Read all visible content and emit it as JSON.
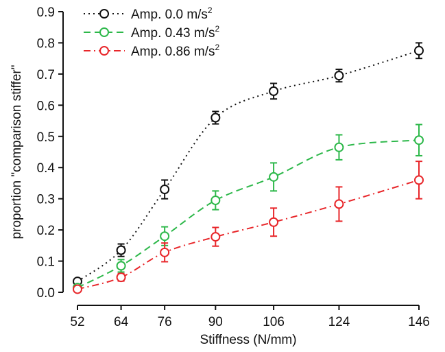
{
  "chart_data": {
    "type": "line",
    "xlabel": "Stiffness (N/mm)",
    "ylabel": "proportion \"comparison stiffer\"",
    "x": [
      52,
      64,
      76,
      90,
      106,
      124,
      146
    ],
    "x_tick_labels": [
      "52",
      "64",
      "76",
      "90",
      "106",
      "124",
      "146"
    ],
    "y_tick_labels": [
      "0.0",
      "0.1",
      "0.2",
      "0.3",
      "0.4",
      "0.5",
      "0.6",
      "0.7",
      "0.8",
      "0.9"
    ],
    "ylim": [
      0,
      0.9
    ],
    "grid": false,
    "legend_position": "top-left",
    "series": [
      {
        "name": "Amp. 0.0 m/s",
        "name_superscript": "2",
        "color": "#111111",
        "line_style": "dotted",
        "marker": "open-circle",
        "values": [
          0.035,
          0.135,
          0.33,
          0.56,
          0.645,
          0.695,
          0.775
        ],
        "errors": [
          0.008,
          0.02,
          0.03,
          0.02,
          0.025,
          0.02,
          0.025
        ]
      },
      {
        "name": "Amp. 0.43 m/s",
        "name_superscript": "2",
        "color": "#2db84a",
        "line_style": "dashed",
        "marker": "open-circle",
        "values": [
          0.015,
          0.085,
          0.18,
          0.295,
          0.37,
          0.465,
          0.488
        ],
        "errors": [
          0.006,
          0.02,
          0.03,
          0.03,
          0.045,
          0.04,
          0.05
        ]
      },
      {
        "name": "Amp. 0.86 m/s",
        "name_superscript": "2",
        "color": "#e8262a",
        "line_style": "dash-dot",
        "marker": "open-circle",
        "values": [
          0.01,
          0.048,
          0.128,
          0.178,
          0.225,
          0.283,
          0.36
        ],
        "errors": [
          0.005,
          0.012,
          0.03,
          0.03,
          0.045,
          0.055,
          0.06
        ]
      }
    ]
  }
}
